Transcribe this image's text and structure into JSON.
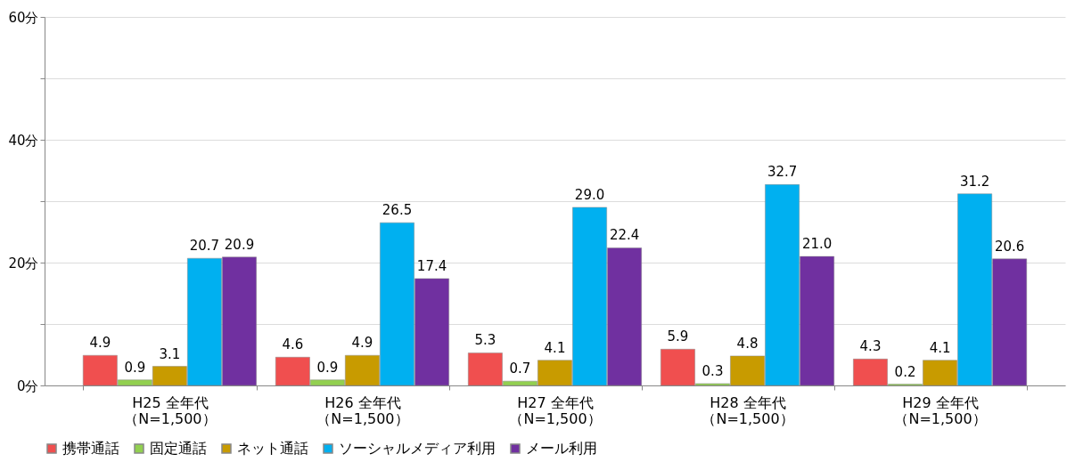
{
  "chart_data": {
    "type": "bar",
    "categories": [
      "H25 全年代（N=1,500）",
      "H26 全年代（N=1,500）",
      "H27 全年代（N=1,500）",
      "H28 全年代（N=1,500）",
      "H29 全年代（N=1,500）"
    ],
    "series": [
      {
        "name": "携帯通話",
        "color": "#f04f4f",
        "values": [
          4.9,
          4.6,
          5.3,
          5.9,
          4.3
        ],
        "value_labels": [
          "4.9",
          "4.6",
          "5.3",
          "5.9",
          "4.3"
        ]
      },
      {
        "name": "固定通話",
        "color": "#92d050",
        "values": [
          0.9,
          0.9,
          0.7,
          0.3,
          0.2
        ],
        "value_labels": [
          "0.9",
          "0.9",
          "0.7",
          "0.3",
          "0.2"
        ]
      },
      {
        "name": "ネット通話",
        "color": "#c89b00",
        "values": [
          3.1,
          4.9,
          4.1,
          4.8,
          4.1
        ],
        "value_labels": [
          "3.1",
          "4.9",
          "4.1",
          "4.8",
          "4.1"
        ]
      },
      {
        "name": "ソーシャルメディア利用",
        "color": "#00b0f0",
        "values": [
          20.7,
          26.5,
          29.0,
          32.7,
          31.2
        ],
        "value_labels": [
          "20.7",
          "26.5",
          "29.0",
          "32.7",
          "31.2"
        ]
      },
      {
        "name": "メール利用",
        "color": "#7030a0",
        "values": [
          20.9,
          17.4,
          22.4,
          21.0,
          20.6
        ],
        "value_labels": [
          "20.9",
          "17.4",
          "22.4",
          "21.0",
          "20.6"
        ]
      }
    ],
    "ylim": [
      0,
      60
    ],
    "yticks": [
      {
        "value": 0,
        "label": "0分"
      },
      {
        "value": 10,
        "label": null
      },
      {
        "value": 20,
        "label": "20分"
      },
      {
        "value": 30,
        "label": null
      },
      {
        "value": 40,
        "label": "40分"
      },
      {
        "value": 50,
        "label": null
      },
      {
        "value": 60,
        "label": "60分"
      }
    ],
    "grid": "y",
    "legend": "bottom"
  }
}
